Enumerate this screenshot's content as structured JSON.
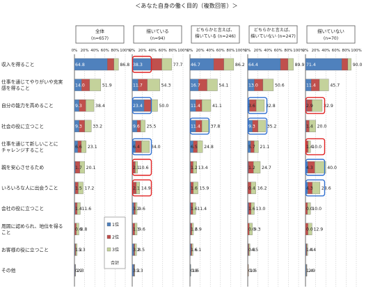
{
  "title": "＜あなた自身の働く目的（複数回答）＞",
  "chart_data": {
    "type": "bar",
    "stacked": true,
    "xlim": [
      0,
      100
    ],
    "xticks": [
      "0%",
      "20%",
      "40%",
      "60%",
      "80%",
      "100%"
    ],
    "grid": true,
    "colors": {
      "rank1": "#4f81bd",
      "rank2": "#c0504d",
      "rank3": "#c4d29b",
      "highlight_red": "#e02020",
      "highlight_blue": "#2f6fd0"
    },
    "legend": {
      "position": "inside-bottom-left",
      "items": [
        "1位",
        "2位",
        "3位"
      ],
      "total_label": "合計"
    },
    "categories": [
      "収入を得ること",
      "仕事を通じてやりがいや充実感を得ること",
      "自分の能力を高めること",
      "社会の役に立つこと",
      "仕事を通じて新しいことにチャレンジすること",
      "親を安心させるため",
      "いろいろな人に出会うこと",
      "会社の役に立つこと",
      "周囲に認められ、地位を得ること",
      "お客様の役に立つこと",
      "その他"
    ],
    "panels": [
      {
        "name": "全体",
        "n": "(n=657)",
        "series": [
          {
            "name": "1位",
            "values": [
              64.8,
              14.0,
              9.3,
              9.3,
              6.6,
              1.7,
              1.5,
              1.4,
              0.6,
              1.2,
              0.9
            ]
          },
          {
            "name": "2位",
            "values": [
              13.0,
              16.0,
              13.0,
              11.0,
              7.0,
              9.0,
              6.0,
              4.0,
              3.0,
              1.5,
              0.8
            ]
          },
          {
            "name": "3位",
            "values": [
              9.0,
              21.9,
              16.1,
              12.9,
              9.5,
              9.4,
              9.7,
              6.2,
              5.2,
              2.6,
              0.6
            ]
          }
        ],
        "totals": [
          86.8,
          51.9,
          38.4,
          33.2,
          23.1,
          20.1,
          17.2,
          11.6,
          8.8,
          5.3,
          2.3
        ],
        "highlights": []
      },
      {
        "name": "描いている",
        "n": "(n=94)",
        "series": [
          {
            "name": "1位",
            "values": [
              38.3,
              11.7,
              23.4,
              9.6,
              6.4,
              2.1,
              2.1,
              3.2,
              1.1,
              3.2,
              3.2
            ]
          },
          {
            "name": "2位",
            "values": [
              20.0,
              18.0,
              14.0,
              7.0,
              12.0,
              4.0,
              6.0,
              3.0,
              4.0,
              2.0,
              1.0
            ]
          },
          {
            "name": "3位",
            "values": [
              19.4,
              24.6,
              12.6,
              8.9,
              15.6,
              4.5,
              6.8,
              3.4,
              4.5,
              3.3,
              1.1
            ]
          }
        ],
        "totals": [
          77.7,
          54.3,
          50.0,
          25.5,
          34.0,
          10.6,
          14.9,
          9.6,
          9.6,
          8.5,
          5.3
        ],
        "highlights": [
          {
            "row": 0,
            "color": "red"
          },
          {
            "row": 2,
            "color": "blue"
          },
          {
            "row": 4,
            "color": "blue"
          },
          {
            "row": 5,
            "color": "red"
          },
          {
            "row": 6,
            "color": "red"
          }
        ]
      },
      {
        "name": "どちらかと言えば、描いている",
        "n": "(n=246)",
        "series": [
          {
            "name": "1位",
            "values": [
              46.7,
              16.7,
              11.4,
              11.4,
              6.5,
              1.2,
              1.6,
              1.6,
              1.2,
              1.6,
              0.8
            ]
          },
          {
            "name": "2位",
            "values": [
              20.0,
              17.0,
              12.0,
              12.0,
              8.0,
              5.0,
              5.0,
              4.0,
              2.5,
              2.0,
              0.4
            ]
          },
          {
            "name": "3位",
            "values": [
              19.5,
              20.4,
              17.7,
              14.4,
              10.3,
              7.2,
              9.3,
              5.8,
              3.2,
              2.5,
              0.4
            ]
          }
        ],
        "totals": [
          86.2,
          54.1,
          41.1,
          37.8,
          24.8,
          13.4,
          15.9,
          11.4,
          6.9,
          6.1,
          1.6
        ],
        "highlights": [
          {
            "row": 3,
            "color": "blue"
          }
        ]
      },
      {
        "name": "どちらかと言えば、描いていない",
        "n": "(n=247)",
        "series": [
          {
            "name": "1位",
            "values": [
              64.4,
              13.0,
              3.6,
              9.3,
              5.7,
              1.2,
              0.4,
              1.6,
              0.0,
              0.8,
              0.0
            ]
          },
          {
            "name": "2位",
            "values": [
              15.0,
              17.0,
              13.0,
              11.0,
              7.0,
              10.0,
              6.0,
              5.0,
              3.0,
              1.5,
              0.8
            ]
          },
          {
            "name": "3位",
            "values": [
              10.5,
              20.6,
              16.2,
              14.9,
              8.4,
              13.5,
              9.8,
              6.4,
              6.3,
              2.2,
              0.8
            ]
          }
        ],
        "totals": [
          89.9,
          50.6,
          32.8,
          35.2,
          21.1,
          24.7,
          16.2,
          13.0,
          9.3,
          4.5,
          1.6
        ],
        "highlights": [
          {
            "row": 2,
            "color": "blue"
          },
          {
            "row": 3,
            "color": "blue"
          }
        ]
      },
      {
        "name": "描いていない",
        "n": "(n=70)",
        "series": [
          {
            "name": "1位",
            "values": [
              71.4,
              11.4,
              2.9,
              1.4,
              1.4,
              4.3,
              4.3,
              0.0,
              0.0,
              1.4,
              1.4
            ]
          },
          {
            "name": "2位",
            "values": [
              12.0,
              16.0,
              10.0,
              6.0,
              4.0,
              14.0,
              9.0,
              4.0,
              5.0,
              1.4,
              0.7
            ]
          },
          {
            "name": "3位",
            "values": [
              6.6,
              18.3,
              20.0,
              12.6,
              4.6,
              21.7,
              15.3,
              6.0,
              7.9,
              1.6,
              0.8
            ]
          }
        ],
        "totals": [
          90.0,
          45.7,
          32.9,
          20.0,
          10.0,
          40.0,
          28.6,
          10.0,
          12.9,
          4.4,
          2.9
        ],
        "highlights": [
          {
            "row": 2,
            "color": "red"
          },
          {
            "row": 4,
            "color": "red"
          },
          {
            "row": 5,
            "color": "blue"
          },
          {
            "row": 6,
            "color": "blue"
          }
        ]
      }
    ]
  }
}
